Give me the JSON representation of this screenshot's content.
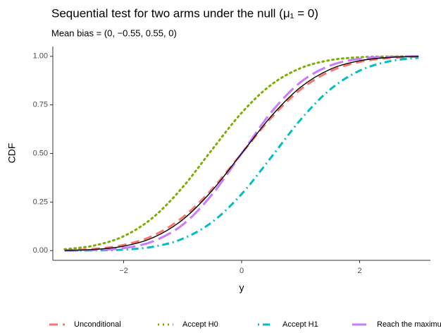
{
  "chart_data": {
    "type": "line",
    "title": "Sequential test for two arms under the null (μ₁ = 0)",
    "subtitle": "Mean bias = (0, −0.55, 0.55, 0)",
    "x_label": "y",
    "y_label": "CDF",
    "x": [
      -3,
      -2.5,
      -2,
      -1.5,
      -1,
      -0.5,
      0,
      0.5,
      1,
      1.5,
      2,
      2.5,
      3
    ],
    "series": [
      {
        "name": "Unconditional",
        "color": "#F8766D",
        "dash": "dashed",
        "values": [
          0.002,
          0.009,
          0.029,
          0.077,
          0.171,
          0.317,
          0.5,
          0.683,
          0.829,
          0.923,
          0.971,
          0.991,
          0.998
        ]
      },
      {
        "name": "Accept H0",
        "color": "#7CAE00",
        "dash": "dotted",
        "values": [
          0.007,
          0.026,
          0.074,
          0.171,
          0.326,
          0.52,
          0.709,
          0.853,
          0.939,
          0.98,
          0.995,
          0.999,
          1.0
        ]
      },
      {
        "name": "Accept H1",
        "color": "#00BFC4",
        "dash": "dotdash",
        "values": [
          0.0,
          0.001,
          0.005,
          0.02,
          0.061,
          0.147,
          0.291,
          0.48,
          0.674,
          0.829,
          0.926,
          0.974,
          0.993
        ]
      },
      {
        "name": "Reach the maximum",
        "color": "#C77CFF",
        "dash": "longdash",
        "values": [
          0.0,
          0.003,
          0.013,
          0.048,
          0.133,
          0.289,
          0.5,
          0.711,
          0.867,
          0.952,
          0.987,
          0.997,
          1.0
        ]
      },
      {
        "color": "#000000",
        "dash": "solid",
        "values": [
          0.001,
          0.006,
          0.023,
          0.067,
          0.159,
          0.309,
          0.5,
          0.691,
          0.841,
          0.933,
          0.977,
          0.994,
          0.999
        ]
      }
    ],
    "xlim": [
      -3.2,
      3.2
    ],
    "ylim": [
      -0.05,
      1.05
    ],
    "xticks": [
      {
        "value": -2,
        "label": "−2"
      },
      0,
      2
    ],
    "yticks": [
      {
        "value": 0,
        "label": "0.00"
      },
      {
        "value": 0.25,
        "label": "0.25"
      },
      {
        "value": 0.5,
        "label": "0.50"
      },
      {
        "value": 0.75,
        "label": "0.75"
      },
      {
        "value": 1,
        "label": "1.00"
      }
    ],
    "grid": false,
    "legend": "bottom"
  }
}
